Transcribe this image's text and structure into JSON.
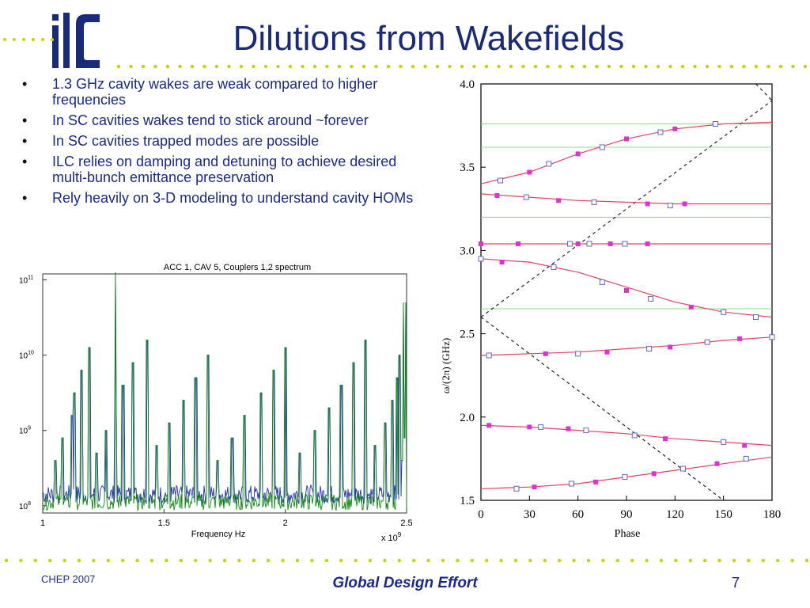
{
  "slide": {
    "title": "Dilutions from Wakefields",
    "logo_text": "ilc",
    "accent_color": "#1a2a7a",
    "dot_color": "#c8d400"
  },
  "bullets": [
    "1.3 GHz cavity wakes are weak compared to higher frequencies",
    "In SC cavities wakes tend to stick around ~forever",
    "In SC cavities trapped modes are possible",
    "ILC relies on damping and detuning to achieve desired multi-bunch emittance preservation",
    "Rely heavily on 3-D modeling to understand cavity HOMs"
  ],
  "footer": {
    "left": "CHEP 2007",
    "center": "Global Design Effort",
    "page": "7"
  },
  "chart_data": [
    {
      "type": "line",
      "title": "ACC 1, CAV 5, Couplers 1,2 spectrum",
      "xlabel": "Frequency Hz",
      "x_multiplier": "x 10^9",
      "xlim": [
        1,
        2.5
      ],
      "ylim": [
        80000000,
        120000000000
      ],
      "yscale": "log",
      "xticks": [
        "1",
        "1.5",
        "2",
        "2.5"
      ],
      "yticks": [
        "10^8",
        "10^9",
        "10^10",
        "10^11"
      ],
      "series": [
        {
          "color": "#2233bb",
          "values": []
        },
        {
          "color": "#118811",
          "values": []
        }
      ],
      "note_series_values_omitted": ""
    },
    {
      "type": "line",
      "xlabel": "Phase",
      "ylabel": "ω/(2π) (GHz)",
      "xlim": [
        0,
        180
      ],
      "ylim": [
        1.5,
        4.0
      ],
      "xticks": [
        "0",
        "30",
        "60",
        "90",
        "120",
        "150",
        "180"
      ],
      "yticks": [
        "1.5",
        "2.0",
        "2.5",
        "3.0",
        "3.5",
        "4.0"
      ],
      "bands": [
        {
          "points": [
            [
              0,
              1.57
            ],
            [
              30,
              1.58
            ],
            [
              60,
              1.6
            ],
            [
              90,
              1.64
            ],
            [
              120,
              1.68
            ],
            [
              150,
              1.72
            ],
            [
              180,
              1.76
            ]
          ]
        },
        {
          "points": [
            [
              0,
              1.95
            ],
            [
              30,
              1.94
            ],
            [
              60,
              1.92
            ],
            [
              90,
              1.9
            ],
            [
              120,
              1.87
            ],
            [
              150,
              1.85
            ],
            [
              180,
              1.83
            ]
          ]
        },
        {
          "points": [
            [
              0,
              2.37
            ],
            [
              30,
              2.38
            ],
            [
              60,
              2.39
            ],
            [
              90,
              2.41
            ],
            [
              120,
              2.43
            ],
            [
              150,
              2.46
            ],
            [
              180,
              2.48
            ]
          ]
        },
        {
          "points": [
            [
              0,
              2.95
            ],
            [
              30,
              2.93
            ],
            [
              60,
              2.87
            ],
            [
              90,
              2.78
            ],
            [
              120,
              2.69
            ],
            [
              150,
              2.63
            ],
            [
              180,
              2.6
            ]
          ]
        },
        {
          "points": [
            [
              0,
              3.04
            ],
            [
              30,
              3.04
            ],
            [
              60,
              3.04
            ],
            [
              90,
              3.04
            ],
            [
              120,
              3.04
            ],
            [
              150,
              3.04
            ],
            [
              180,
              3.04
            ]
          ]
        },
        {
          "points": [
            [
              0,
              3.34
            ],
            [
              30,
              3.32
            ],
            [
              60,
              3.3
            ],
            [
              90,
              3.29
            ],
            [
              120,
              3.28
            ],
            [
              150,
              3.28
            ],
            [
              180,
              3.28
            ]
          ]
        },
        {
          "points": [
            [
              0,
              3.4
            ],
            [
              30,
              3.47
            ],
            [
              60,
              3.58
            ],
            [
              90,
              3.67
            ],
            [
              120,
              3.73
            ],
            [
              150,
              3.76
            ],
            [
              180,
              3.77
            ]
          ]
        }
      ],
      "hlines": [
        3.76,
        3.62,
        3.2,
        2.65
      ],
      "light_lines": [
        [
          0,
          2.6
        ],
        [
          180,
          4.05
        ]
      ],
      "dashed_lines": [
        {
          "from": [
            0,
            2.6
          ],
          "to": [
            180,
            3.9
          ]
        },
        {
          "from": [
            0,
            2.6
          ],
          "to": [
            150,
            1.5
          ]
        },
        {
          "from": [
            170,
            4.0
          ],
          "to": [
            180,
            3.9
          ]
        }
      ],
      "markers_filled": [
        [
          0,
          3.04
        ],
        [
          23,
          3.04
        ],
        [
          60,
          3.04
        ],
        [
          80,
          3.04
        ],
        [
          103,
          3.04
        ],
        [
          10,
          3.33
        ],
        [
          48,
          3.3
        ],
        [
          103,
          3.28
        ],
        [
          126,
          3.28
        ],
        [
          30,
          3.47
        ],
        [
          60,
          3.58
        ],
        [
          90,
          3.67
        ],
        [
          120,
          3.73
        ],
        [
          13,
          2.93
        ],
        [
          90,
          2.76
        ],
        [
          130,
          2.66
        ],
        [
          40,
          2.38
        ],
        [
          78,
          2.39
        ],
        [
          117,
          2.42
        ],
        [
          160,
          2.47
        ],
        [
          5,
          1.95
        ],
        [
          30,
          1.94
        ],
        [
          54,
          1.93
        ],
        [
          114,
          1.87
        ],
        [
          163,
          1.83
        ],
        [
          33,
          1.58
        ],
        [
          71,
          1.61
        ],
        [
          107,
          1.66
        ],
        [
          146,
          1.72
        ]
      ],
      "markers_open": [
        [
          0,
          2.95
        ],
        [
          45,
          2.9
        ],
        [
          75,
          2.81
        ],
        [
          105,
          2.71
        ],
        [
          150,
          2.63
        ],
        [
          170,
          2.6
        ],
        [
          5,
          2.37
        ],
        [
          60,
          2.38
        ],
        [
          104,
          2.41
        ],
        [
          140,
          2.45
        ],
        [
          180,
          2.48
        ],
        [
          37,
          1.94
        ],
        [
          65,
          1.92
        ],
        [
          95,
          1.89
        ],
        [
          150,
          1.85
        ],
        [
          22,
          1.57
        ],
        [
          56,
          1.6
        ],
        [
          89,
          1.64
        ],
        [
          125,
          1.69
        ],
        [
          164,
          1.75
        ],
        [
          12,
          3.42
        ],
        [
          42,
          3.52
        ],
        [
          75,
          3.62
        ],
        [
          111,
          3.71
        ],
        [
          145,
          3.76
        ],
        [
          28,
          3.32
        ],
        [
          70,
          3.29
        ],
        [
          117,
          3.27
        ],
        [
          55,
          3.04
        ],
        [
          67,
          3.04
        ],
        [
          89,
          3.04
        ]
      ],
      "marker_color": "#e030d0",
      "line_color": "#dd4466",
      "hline_color": "#88dd88"
    }
  ]
}
